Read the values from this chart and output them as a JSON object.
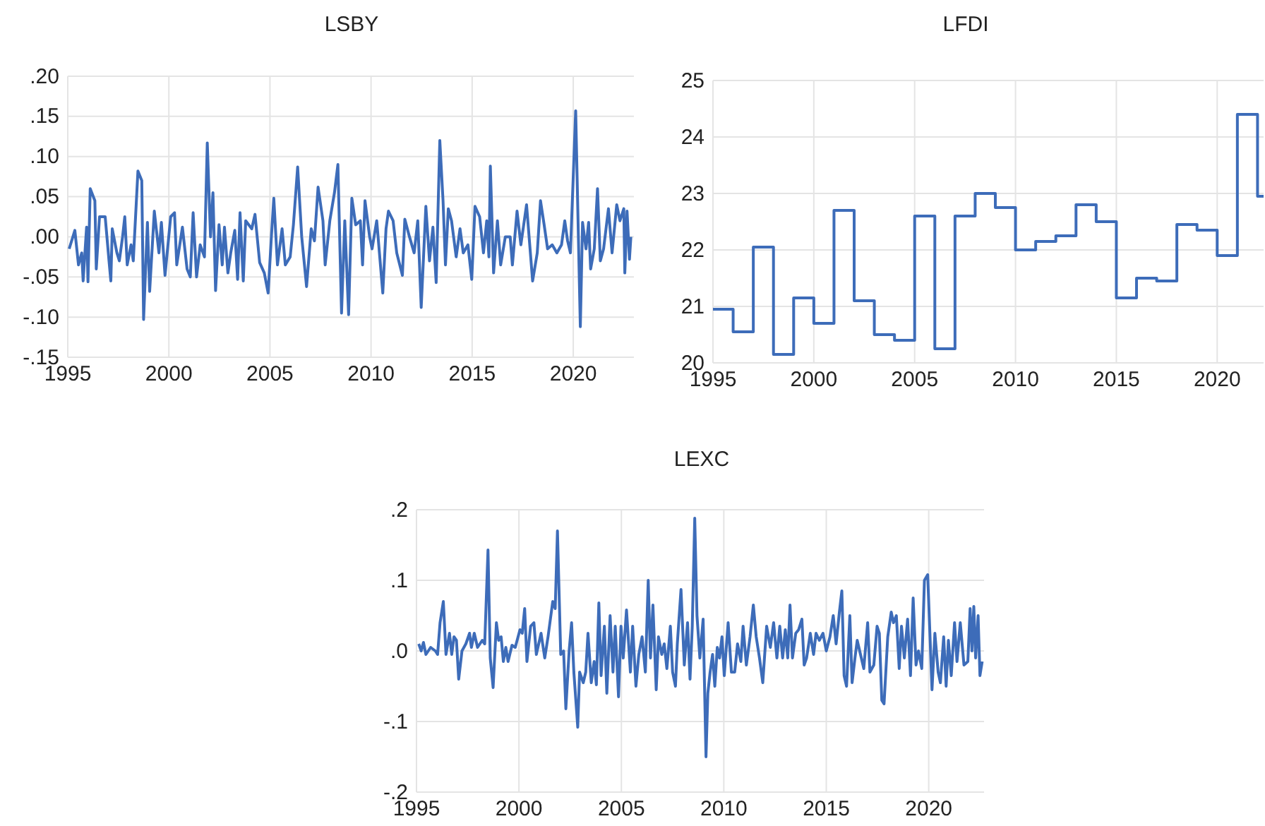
{
  "chart_data": [
    {
      "type": "line",
      "title": "LSBY",
      "grid": true,
      "xlim": [
        1995,
        2023
      ],
      "xticks": [
        1995,
        2000,
        2005,
        2010,
        2015,
        2020
      ],
      "ylim": [
        -0.15,
        0.2
      ],
      "yticks": [
        {
          "value": -0.15,
          "label": "-.15"
        },
        {
          "value": -0.1,
          "label": "-.10"
        },
        {
          "value": -0.05,
          "label": "-.05"
        },
        {
          "value": 0,
          "label": ".00"
        },
        {
          "value": 0.05,
          "label": ".05"
        },
        {
          "value": 0.1,
          "label": ".10"
        },
        {
          "value": 0.15,
          "label": ".15"
        },
        {
          "value": 0.2,
          "label": ".20"
        }
      ],
      "series": [
        {
          "color": "#3d6cb9",
          "x": [
            1995.07,
            1995.35,
            1995.53,
            1995.69,
            1995.76,
            1995.93,
            1996.0,
            1996.11,
            1996.34,
            1996.41,
            1996.57,
            1996.85,
            1997.04,
            1997.13,
            1997.2,
            1997.43,
            1997.55,
            1997.71,
            1997.82,
            1997.94,
            1998.13,
            1998.24,
            1998.47,
            1998.66,
            1998.75,
            1998.94,
            1999.05,
            1999.28,
            1999.51,
            1999.63,
            1999.81,
            2000.09,
            2000.28,
            2000.39,
            2000.67,
            2000.9,
            2001.06,
            2001.2,
            2001.37,
            2001.55,
            2001.76,
            2001.9,
            2002.06,
            2002.18,
            2002.31,
            2002.48,
            2002.64,
            2002.75,
            2002.92,
            2003.06,
            2003.26,
            2003.4,
            2003.52,
            2003.68,
            2003.8,
            2004.1,
            2004.26,
            2004.49,
            2004.72,
            2004.91,
            2005.07,
            2005.19,
            2005.37,
            2005.6,
            2005.76,
            2006.0,
            2006.16,
            2006.37,
            2006.57,
            2006.81,
            2007.04,
            2007.2,
            2007.38,
            2007.62,
            2007.73,
            2007.96,
            2008.19,
            2008.36,
            2008.54,
            2008.7,
            2008.89,
            2009.05,
            2009.24,
            2009.47,
            2009.58,
            2009.7,
            2009.93,
            2010.05,
            2010.28,
            2010.58,
            2010.74,
            2010.86,
            2011.09,
            2011.27,
            2011.55,
            2011.67,
            2011.9,
            2012.13,
            2012.31,
            2012.48,
            2012.71,
            2012.89,
            2013.06,
            2013.22,
            2013.4,
            2013.56,
            2013.68,
            2013.82,
            2013.98,
            2014.21,
            2014.4,
            2014.56,
            2014.79,
            2014.98,
            2015.14,
            2015.37,
            2015.56,
            2015.72,
            2015.83,
            2015.9,
            2016.06,
            2016.25,
            2016.41,
            2016.64,
            2016.88,
            2016.99,
            2017.22,
            2017.41,
            2017.69,
            2017.99,
            2018.22,
            2018.38,
            2018.56,
            2018.73,
            2018.96,
            2019.19,
            2019.42,
            2019.58,
            2019.72,
            2019.86,
            2020.12,
            2020.35,
            2020.46,
            2020.63,
            2020.76,
            2020.86,
            2021.04,
            2021.2,
            2021.34,
            2021.5,
            2021.74,
            2021.92,
            2022.15,
            2022.31,
            2022.5,
            2022.55,
            2022.66,
            2022.78,
            2022.85
          ],
          "values": [
            -0.015,
            0.008,
            -0.035,
            -0.02,
            -0.055,
            0.012,
            -0.056,
            0.06,
            0.045,
            -0.04,
            0.025,
            0.025,
            -0.03,
            -0.055,
            0.01,
            -0.02,
            -0.03,
            0.0,
            0.025,
            -0.035,
            -0.01,
            -0.03,
            0.082,
            0.07,
            -0.103,
            0.018,
            -0.068,
            0.032,
            -0.02,
            0.018,
            -0.048,
            0.025,
            0.03,
            -0.035,
            0.012,
            -0.04,
            -0.05,
            0.03,
            -0.05,
            -0.01,
            -0.025,
            0.117,
            0.0,
            0.055,
            -0.067,
            0.015,
            -0.035,
            0.012,
            -0.045,
            -0.02,
            0.008,
            -0.053,
            0.03,
            -0.055,
            0.02,
            0.01,
            0.028,
            -0.032,
            -0.045,
            -0.07,
            0.0,
            0.048,
            -0.035,
            0.01,
            -0.035,
            -0.025,
            0.015,
            0.087,
            0.0,
            -0.062,
            0.01,
            -0.005,
            0.062,
            0.02,
            -0.035,
            0.02,
            0.055,
            0.09,
            -0.095,
            0.02,
            -0.097,
            0.048,
            0.015,
            0.02,
            -0.035,
            0.045,
            0.0,
            -0.015,
            0.02,
            -0.07,
            0.01,
            0.032,
            0.02,
            -0.02,
            -0.048,
            0.022,
            0.0,
            -0.02,
            0.02,
            -0.088,
            0.038,
            -0.03,
            0.012,
            -0.057,
            0.12,
            0.045,
            -0.035,
            0.035,
            0.02,
            -0.025,
            0.01,
            -0.02,
            -0.01,
            -0.053,
            0.038,
            0.025,
            -0.02,
            0.02,
            -0.025,
            0.088,
            -0.045,
            0.02,
            -0.035,
            0.0,
            0.0,
            -0.035,
            0.032,
            -0.01,
            0.04,
            -0.055,
            -0.02,
            0.045,
            0.015,
            -0.015,
            -0.01,
            -0.02,
            -0.01,
            0.02,
            -0.005,
            -0.02,
            0.157,
            -0.112,
            0.018,
            -0.015,
            0.018,
            -0.04,
            -0.015,
            0.06,
            -0.03,
            -0.015,
            0.035,
            -0.02,
            0.04,
            0.02,
            0.035,
            -0.045,
            0.032,
            -0.028,
            0.0
          ]
        }
      ]
    },
    {
      "type": "step",
      "title": "LFDI",
      "grid": true,
      "xlim": [
        1995,
        2022.3
      ],
      "xticks": [
        1995,
        2000,
        2005,
        2010,
        2015,
        2020
      ],
      "ylim": [
        20,
        25
      ],
      "yticks": [
        20,
        21,
        22,
        23,
        24,
        25
      ],
      "series": [
        {
          "color": "#3d6cb9",
          "x": [
            1995,
            1996,
            1997,
            1998,
            1999,
            2000,
            2001,
            2002,
            2003,
            2004,
            2005,
            2006,
            2007,
            2008,
            2009,
            2010,
            2011,
            2012,
            2013,
            2014,
            2015,
            2016,
            2017,
            2018,
            2019,
            2020,
            2021,
            2022,
            2022.3
          ],
          "values": [
            20.95,
            20.55,
            22.05,
            20.15,
            21.15,
            20.7,
            22.7,
            21.1,
            20.5,
            20.4,
            22.6,
            20.25,
            22.6,
            23.0,
            22.75,
            22.0,
            22.15,
            22.25,
            22.8,
            22.5,
            21.15,
            21.5,
            21.45,
            22.45,
            22.35,
            21.9,
            24.4,
            22.95,
            22.95
          ]
        }
      ]
    },
    {
      "type": "line",
      "title": "LEXC",
      "grid": true,
      "xlim": [
        1995,
        2022.7
      ],
      "xticks": [
        1995,
        2000,
        2005,
        2010,
        2015,
        2020
      ],
      "ylim": [
        -0.2,
        0.2
      ],
      "yticks": [
        {
          "value": -0.2,
          "label": "-.2"
        },
        {
          "value": -0.1,
          "label": "-.1"
        },
        {
          "value": 0,
          "label": ".0"
        },
        {
          "value": 0.1,
          "label": ".1"
        },
        {
          "value": 0.2,
          "label": ".2"
        }
      ],
      "series": [
        {
          "color": "#3d6cb9",
          "x": [
            1995.11,
            1995.23,
            1995.34,
            1995.46,
            1995.69,
            1995.92,
            1996.03,
            1996.15,
            1996.31,
            1996.44,
            1996.61,
            1996.72,
            1996.83,
            1996.95,
            1997.06,
            1997.22,
            1997.41,
            1997.59,
            1997.68,
            1997.82,
            1997.98,
            1998.21,
            1998.33,
            1998.49,
            1998.6,
            1998.74,
            1998.9,
            1999.01,
            1999.13,
            1999.24,
            1999.36,
            1999.47,
            1999.66,
            1999.82,
            2000.05,
            2000.16,
            2000.28,
            2000.39,
            2000.57,
            2000.73,
            2000.85,
            2001.08,
            2001.26,
            2001.42,
            2001.65,
            2001.77,
            2001.88,
            2002.04,
            2002.18,
            2002.29,
            2002.45,
            2002.57,
            2002.68,
            2002.87,
            2002.96,
            2003.14,
            2003.26,
            2003.37,
            2003.53,
            2003.67,
            2003.78,
            2003.9,
            2004.01,
            2004.17,
            2004.29,
            2004.45,
            2004.59,
            2004.7,
            2004.86,
            2004.98,
            2005.09,
            2005.25,
            2005.44,
            2005.55,
            2005.71,
            2005.85,
            2006.01,
            2006.17,
            2006.31,
            2006.42,
            2006.54,
            2006.7,
            2006.81,
            2006.97,
            2007.09,
            2007.22,
            2007.39,
            2007.5,
            2007.64,
            2007.73,
            2007.91,
            2008.07,
            2008.23,
            2008.35,
            2008.46,
            2008.58,
            2008.69,
            2008.83,
            2008.99,
            2009.13,
            2009.22,
            2009.33,
            2009.45,
            2009.56,
            2009.68,
            2009.79,
            2009.91,
            2010.02,
            2010.21,
            2010.37,
            2010.53,
            2010.67,
            2010.83,
            2010.94,
            2011.1,
            2011.28,
            2011.44,
            2011.58,
            2011.74,
            2011.9,
            2012.09,
            2012.27,
            2012.43,
            2012.59,
            2012.73,
            2012.87,
            2013.0,
            2013.12,
            2013.23,
            2013.35,
            2013.51,
            2013.65,
            2013.81,
            2013.92,
            2014.04,
            2014.22,
            2014.38,
            2014.5,
            2014.66,
            2014.84,
            2015.0,
            2015.18,
            2015.34,
            2015.48,
            2015.64,
            2015.76,
            2015.87,
            2015.99,
            2016.15,
            2016.26,
            2016.4,
            2016.51,
            2016.67,
            2016.83,
            2017.02,
            2017.13,
            2017.32,
            2017.48,
            2017.59,
            2017.71,
            2017.82,
            2018.0,
            2018.17,
            2018.28,
            2018.42,
            2018.56,
            2018.67,
            2018.81,
            2018.97,
            2019.11,
            2019.24,
            2019.38,
            2019.5,
            2019.66,
            2019.79,
            2019.95,
            2020.07,
            2020.16,
            2020.3,
            2020.46,
            2020.57,
            2020.73,
            2020.85,
            2020.96,
            2021.1,
            2021.26,
            2021.38,
            2021.54,
            2021.72,
            2021.91,
            2022.02,
            2022.11,
            2022.2,
            2022.29,
            2022.41,
            2022.5,
            2022.61
          ],
          "values": [
            0.01,
            0.0,
            0.012,
            -0.005,
            0.005,
            0.0,
            -0.005,
            0.04,
            0.07,
            -0.005,
            0.025,
            -0.005,
            0.02,
            0.015,
            -0.04,
            0.0,
            0.01,
            0.025,
            0.005,
            0.025,
            0.005,
            0.015,
            0.01,
            0.143,
            -0.01,
            -0.052,
            0.04,
            0.015,
            0.02,
            -0.015,
            0.005,
            -0.015,
            0.008,
            0.005,
            0.03,
            0.025,
            0.06,
            -0.015,
            0.035,
            0.04,
            -0.005,
            0.025,
            -0.01,
            0.02,
            0.07,
            0.06,
            0.17,
            -0.005,
            0.0,
            -0.082,
            0.0,
            0.04,
            -0.03,
            -0.108,
            -0.03,
            -0.045,
            -0.03,
            0.025,
            -0.045,
            -0.015,
            -0.048,
            0.068,
            -0.035,
            0.035,
            -0.06,
            0.05,
            -0.03,
            0.035,
            -0.065,
            0.035,
            -0.01,
            0.058,
            -0.03,
            0.035,
            -0.05,
            -0.005,
            0.02,
            -0.03,
            0.1,
            -0.01,
            0.065,
            -0.055,
            0.02,
            -0.005,
            0.01,
            -0.025,
            0.035,
            -0.03,
            -0.05,
            0.01,
            0.087,
            -0.02,
            0.04,
            -0.04,
            0.035,
            0.188,
            0.05,
            -0.01,
            0.045,
            -0.15,
            -0.06,
            -0.03,
            -0.005,
            -0.05,
            0.005,
            -0.01,
            0.02,
            -0.035,
            0.04,
            -0.03,
            -0.03,
            0.01,
            -0.015,
            0.035,
            -0.02,
            0.02,
            0.065,
            0.02,
            -0.01,
            -0.045,
            0.035,
            0.005,
            0.04,
            -0.01,
            0.035,
            -0.01,
            0.03,
            -0.01,
            0.065,
            -0.01,
            0.025,
            0.03,
            0.045,
            -0.02,
            -0.01,
            0.025,
            -0.005,
            0.025,
            0.015,
            0.025,
            0.0,
            0.02,
            0.05,
            0.01,
            0.055,
            0.085,
            -0.035,
            -0.05,
            0.05,
            -0.045,
            -0.01,
            0.015,
            -0.005,
            -0.025,
            0.04,
            -0.03,
            -0.02,
            0.035,
            0.025,
            -0.07,
            -0.075,
            0.02,
            0.055,
            0.04,
            0.05,
            -0.025,
            0.035,
            -0.01,
            0.045,
            -0.035,
            0.075,
            -0.02,
            0.0,
            -0.025,
            0.1,
            0.108,
            0.015,
            -0.055,
            0.025,
            -0.03,
            -0.045,
            0.02,
            -0.05,
            0.015,
            -0.035,
            0.04,
            -0.015,
            0.04,
            -0.02,
            -0.015,
            0.06,
            0.0,
            0.063,
            -0.01,
            0.05,
            -0.035,
            -0.015
          ]
        }
      ]
    }
  ]
}
